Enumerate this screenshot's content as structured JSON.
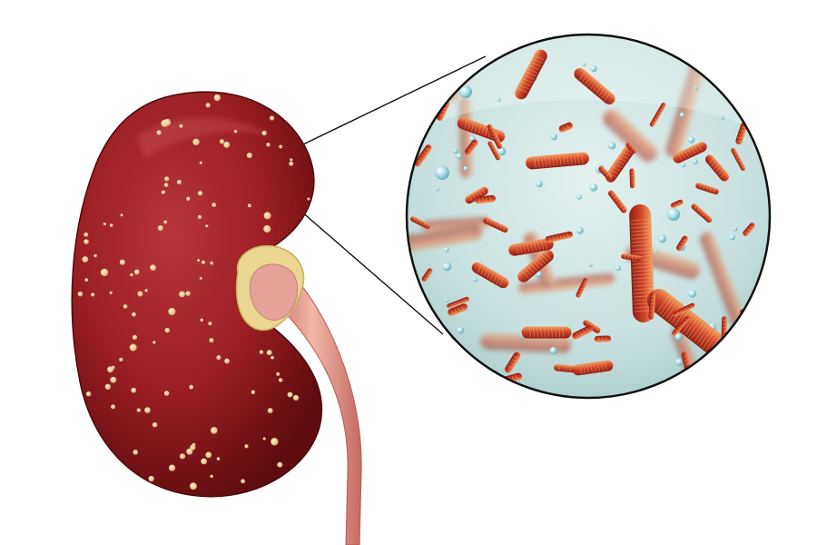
{
  "image": {
    "subject": "kidney-with-bacteria-magnification",
    "colors": {
      "background": "#ffffff",
      "kidney_dark": "#6e0f14",
      "kidney_mid": "#9a1e22",
      "kidney_light": "#b8363a",
      "abscess_spot": "#f3d9a0",
      "hilum_fat": "#e9d690",
      "ureter": "#d98a86",
      "ureter_highlight": "#f2b8a8",
      "lens_fluid": "#cfe6e6",
      "lens_border": "#111111",
      "bacteria": "#d2452a",
      "bacteria_highlight": "#f0a060",
      "droplet": "#9fd6e0"
    },
    "icons": [
      "kidney-illustration",
      "magnifier-circle",
      "bacteria-rod"
    ]
  }
}
